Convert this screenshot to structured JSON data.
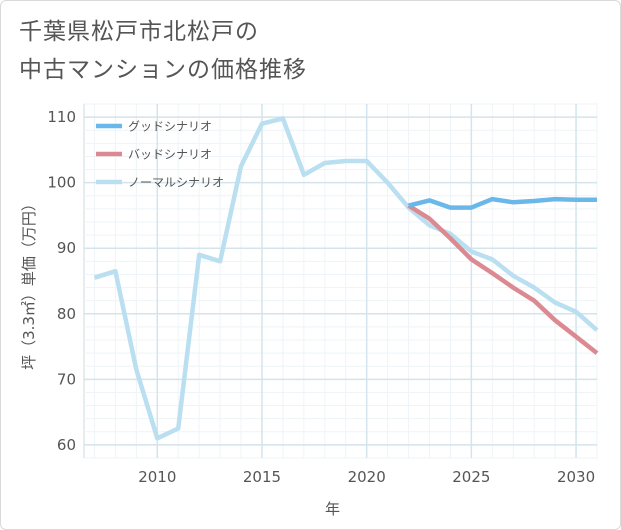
{
  "title_lines": [
    "千葉県松戸市北松戸の",
    "中古マンションの価格推移"
  ],
  "chart_data": {
    "type": "line",
    "title": "千葉県松戸市北松戸の中古マンションの価格推移",
    "xlabel": "年",
    "ylabel": "坪（3.3㎡）単価（万円）",
    "xlim": [
      2006.5,
      2031
    ],
    "ylim": [
      58,
      112
    ],
    "xticks": [
      2010,
      2015,
      2020,
      2025,
      2030
    ],
    "yticks": [
      60,
      70,
      80,
      90,
      100,
      110
    ],
    "grid": true,
    "legend_position": "top-left",
    "series": [
      {
        "name": "グッドシナリオ",
        "color": "#6ab7ea",
        "x": [
          2022,
          2023,
          2024,
          2025,
          2026,
          2027,
          2028,
          2029,
          2030,
          2031
        ],
        "values": [
          96.5,
          97.3,
          96.2,
          96.2,
          97.5,
          97.0,
          97.2,
          97.5,
          97.4,
          97.4
        ]
      },
      {
        "name": "バッドシナリオ",
        "color": "#dc8a92",
        "x": [
          2022,
          2023,
          2024,
          2025,
          2026,
          2027,
          2028,
          2029,
          2030,
          2031
        ],
        "values": [
          96.5,
          94.5,
          91.5,
          88.3,
          86.2,
          84.0,
          82.0,
          79.0,
          76.5,
          74.0
        ]
      },
      {
        "name": "ノーマルシナリオ",
        "color": "#b9dff0",
        "x": [
          2007,
          2008,
          2009,
          2010,
          2011,
          2012,
          2013,
          2014,
          2015,
          2016,
          2017,
          2018,
          2019,
          2020,
          2021,
          2022,
          2023,
          2024,
          2025,
          2026,
          2027,
          2028,
          2029,
          2030,
          2031
        ],
        "values": [
          85.5,
          86.5,
          71.5,
          61.0,
          62.5,
          89.0,
          88.0,
          102.5,
          109.0,
          109.8,
          101.2,
          103.0,
          103.3,
          103.3,
          100.0,
          96.2,
          93.5,
          92.2,
          89.5,
          88.3,
          85.8,
          84.0,
          81.7,
          80.3,
          77.5
        ]
      }
    ]
  }
}
